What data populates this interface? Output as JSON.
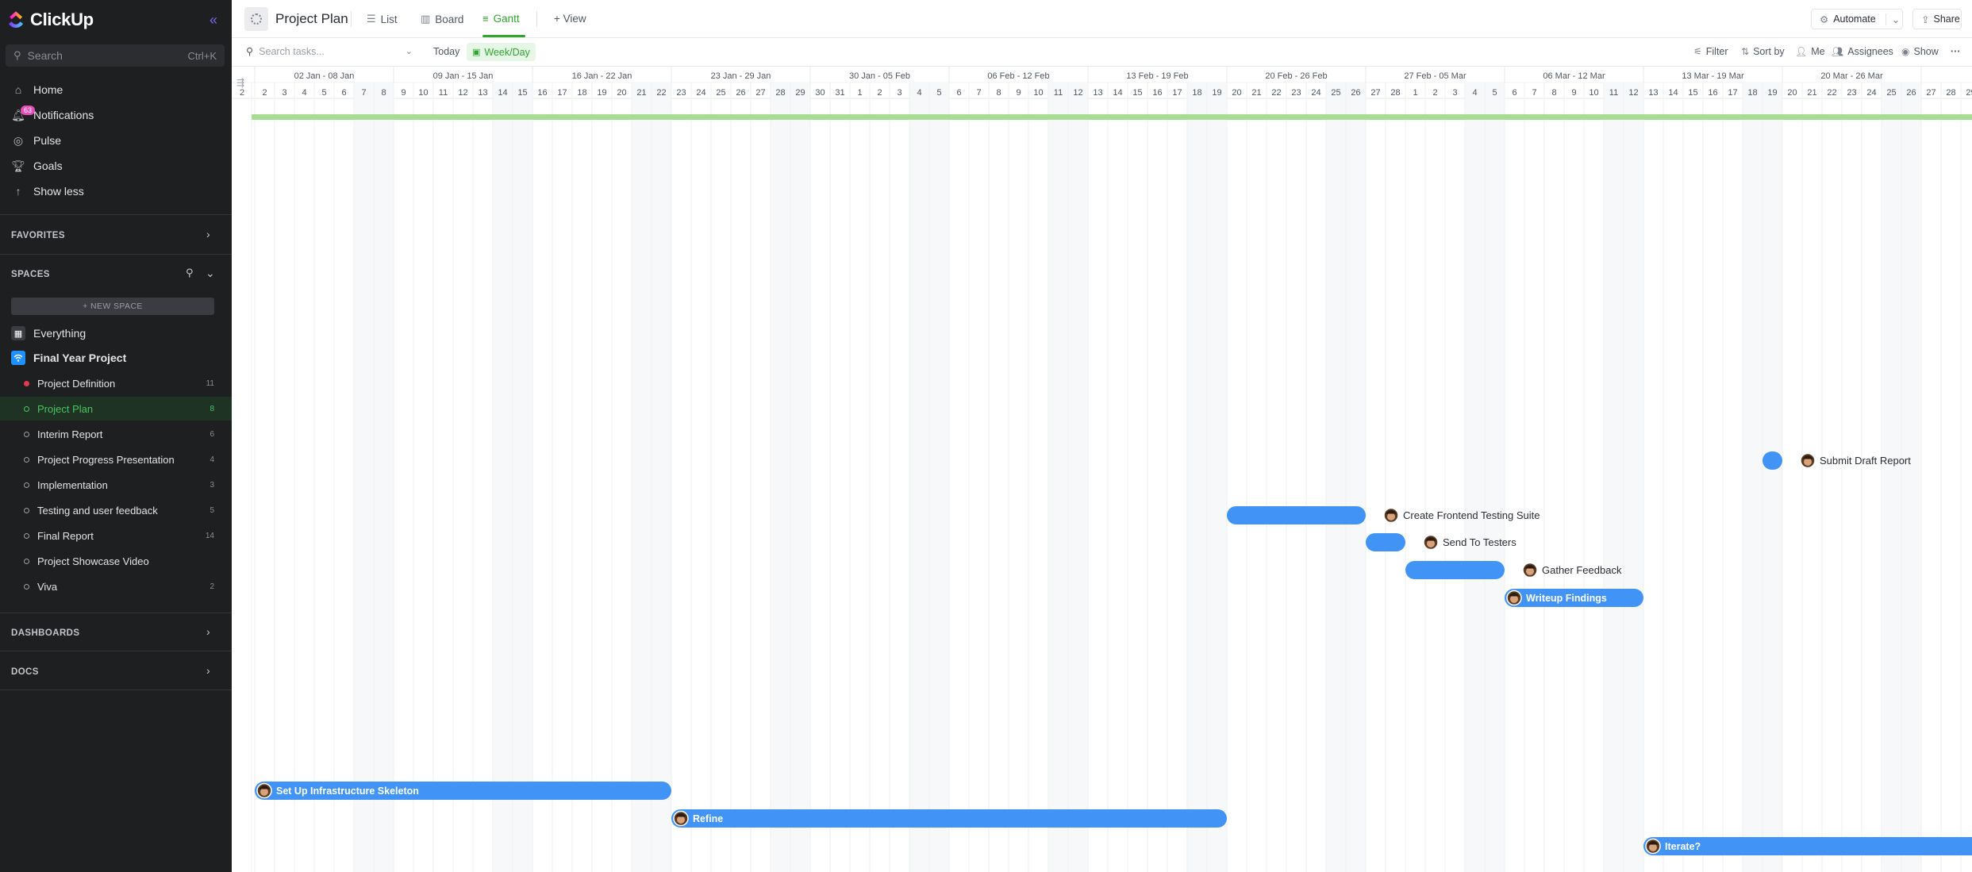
{
  "app": {
    "name": "ClickUp"
  },
  "sidebar": {
    "search_placeholder": "Search",
    "search_shortcut": "Ctrl+K",
    "nav": [
      {
        "label": "Home",
        "icon": "home-icon"
      },
      {
        "label": "Notifications",
        "icon": "bell-icon",
        "badge": "63"
      },
      {
        "label": "Pulse",
        "icon": "pulse-icon"
      },
      {
        "label": "Goals",
        "icon": "trophy-icon"
      },
      {
        "label": "Show less",
        "icon": "arrow-up-icon"
      }
    ],
    "favorites_label": "FAVORITES",
    "spaces_label": "SPACES",
    "new_space_label": "+ NEW SPACE",
    "everything_label": "Everything",
    "space": {
      "name": "Final Year Project",
      "color": "#1e90ff"
    },
    "lists": [
      {
        "name": "Project Definition",
        "count": "11",
        "status": "red"
      },
      {
        "name": "Project Plan",
        "count": "8",
        "status": "active"
      },
      {
        "name": "Interim Report",
        "count": "6",
        "status": ""
      },
      {
        "name": "Project Progress Presentation",
        "count": "4",
        "status": ""
      },
      {
        "name": "Implementation",
        "count": "3",
        "status": ""
      },
      {
        "name": "Testing and user feedback",
        "count": "5",
        "status": ""
      },
      {
        "name": "Final Report",
        "count": "14",
        "status": ""
      },
      {
        "name": "Project Showcase Video",
        "count": "",
        "status": ""
      },
      {
        "name": "Viva",
        "count": "2",
        "status": ""
      }
    ],
    "dashboards_label": "DASHBOARDS",
    "docs_label": "DOCS"
  },
  "topbar": {
    "title": "Project Plan",
    "tabs": [
      {
        "label": "List",
        "icon": "list-icon"
      },
      {
        "label": "Board",
        "icon": "board-icon"
      },
      {
        "label": "Gantt",
        "icon": "gantt-icon"
      }
    ],
    "add_view_label": "+ View",
    "automate_label": "Automate",
    "share_label": "Share"
  },
  "toolbar": {
    "search_placeholder": "Search tasks...",
    "today_label": "Today",
    "scale_label": "Week/Day",
    "filter_label": "Filter",
    "sort_label": "Sort by",
    "me_label": "Me",
    "assignees_label": "Assignees",
    "show_label": "Show"
  },
  "gantt": {
    "weeks": [
      "02 Jan - 08 Jan",
      "09 Jan - 15 Jan",
      "16 Jan - 22 Jan",
      "23 Jan - 29 Jan",
      "30 Jan - 05 Feb",
      "06 Feb - 12 Feb",
      "13 Feb - 19 Feb",
      "20 Feb - 26 Feb",
      "27 Feb - 05 Mar",
      "06 Mar - 12 Mar",
      "13 Mar - 19 Mar",
      "20 Mar - 26 Mar",
      "27"
    ],
    "first_day_label": "2",
    "start": "2023-01-02",
    "days_visible": 88,
    "bar_color": "#4194f6",
    "summary_color": "#a7dd93",
    "tasks": [
      {
        "name": "Submit Draft Report",
        "start": "2023-03-19",
        "end": "2023-03-20",
        "row": 0,
        "label_outside": true
      },
      {
        "name": "Create Frontend Testing Suite",
        "start": "2023-02-20",
        "end": "2023-02-27",
        "row": 1,
        "label_outside": true
      },
      {
        "name": "Send To Testers",
        "start": "2023-02-27",
        "end": "2023-03-01",
        "row": 2,
        "label_outside": true
      },
      {
        "name": "Gather Feedback",
        "start": "2023-03-01",
        "end": "2023-03-06",
        "row": 3,
        "label_outside": true
      },
      {
        "name": "Writeup Findings",
        "start": "2023-03-06",
        "end": "2023-03-13",
        "row": 4,
        "label_outside": false
      },
      {
        "name": "Set Up Infrastructure Skeleton",
        "start": "2023-01-02",
        "end": "2023-01-23",
        "row": 5,
        "label_outside": false
      },
      {
        "name": "Refine",
        "start": "2023-01-23",
        "end": "2023-02-20",
        "row": 6,
        "label_outside": false
      },
      {
        "name": "Iterate?",
        "start": "2023-03-13",
        "end": "2023-04-10",
        "row": 7,
        "label_outside": false
      }
    ]
  }
}
